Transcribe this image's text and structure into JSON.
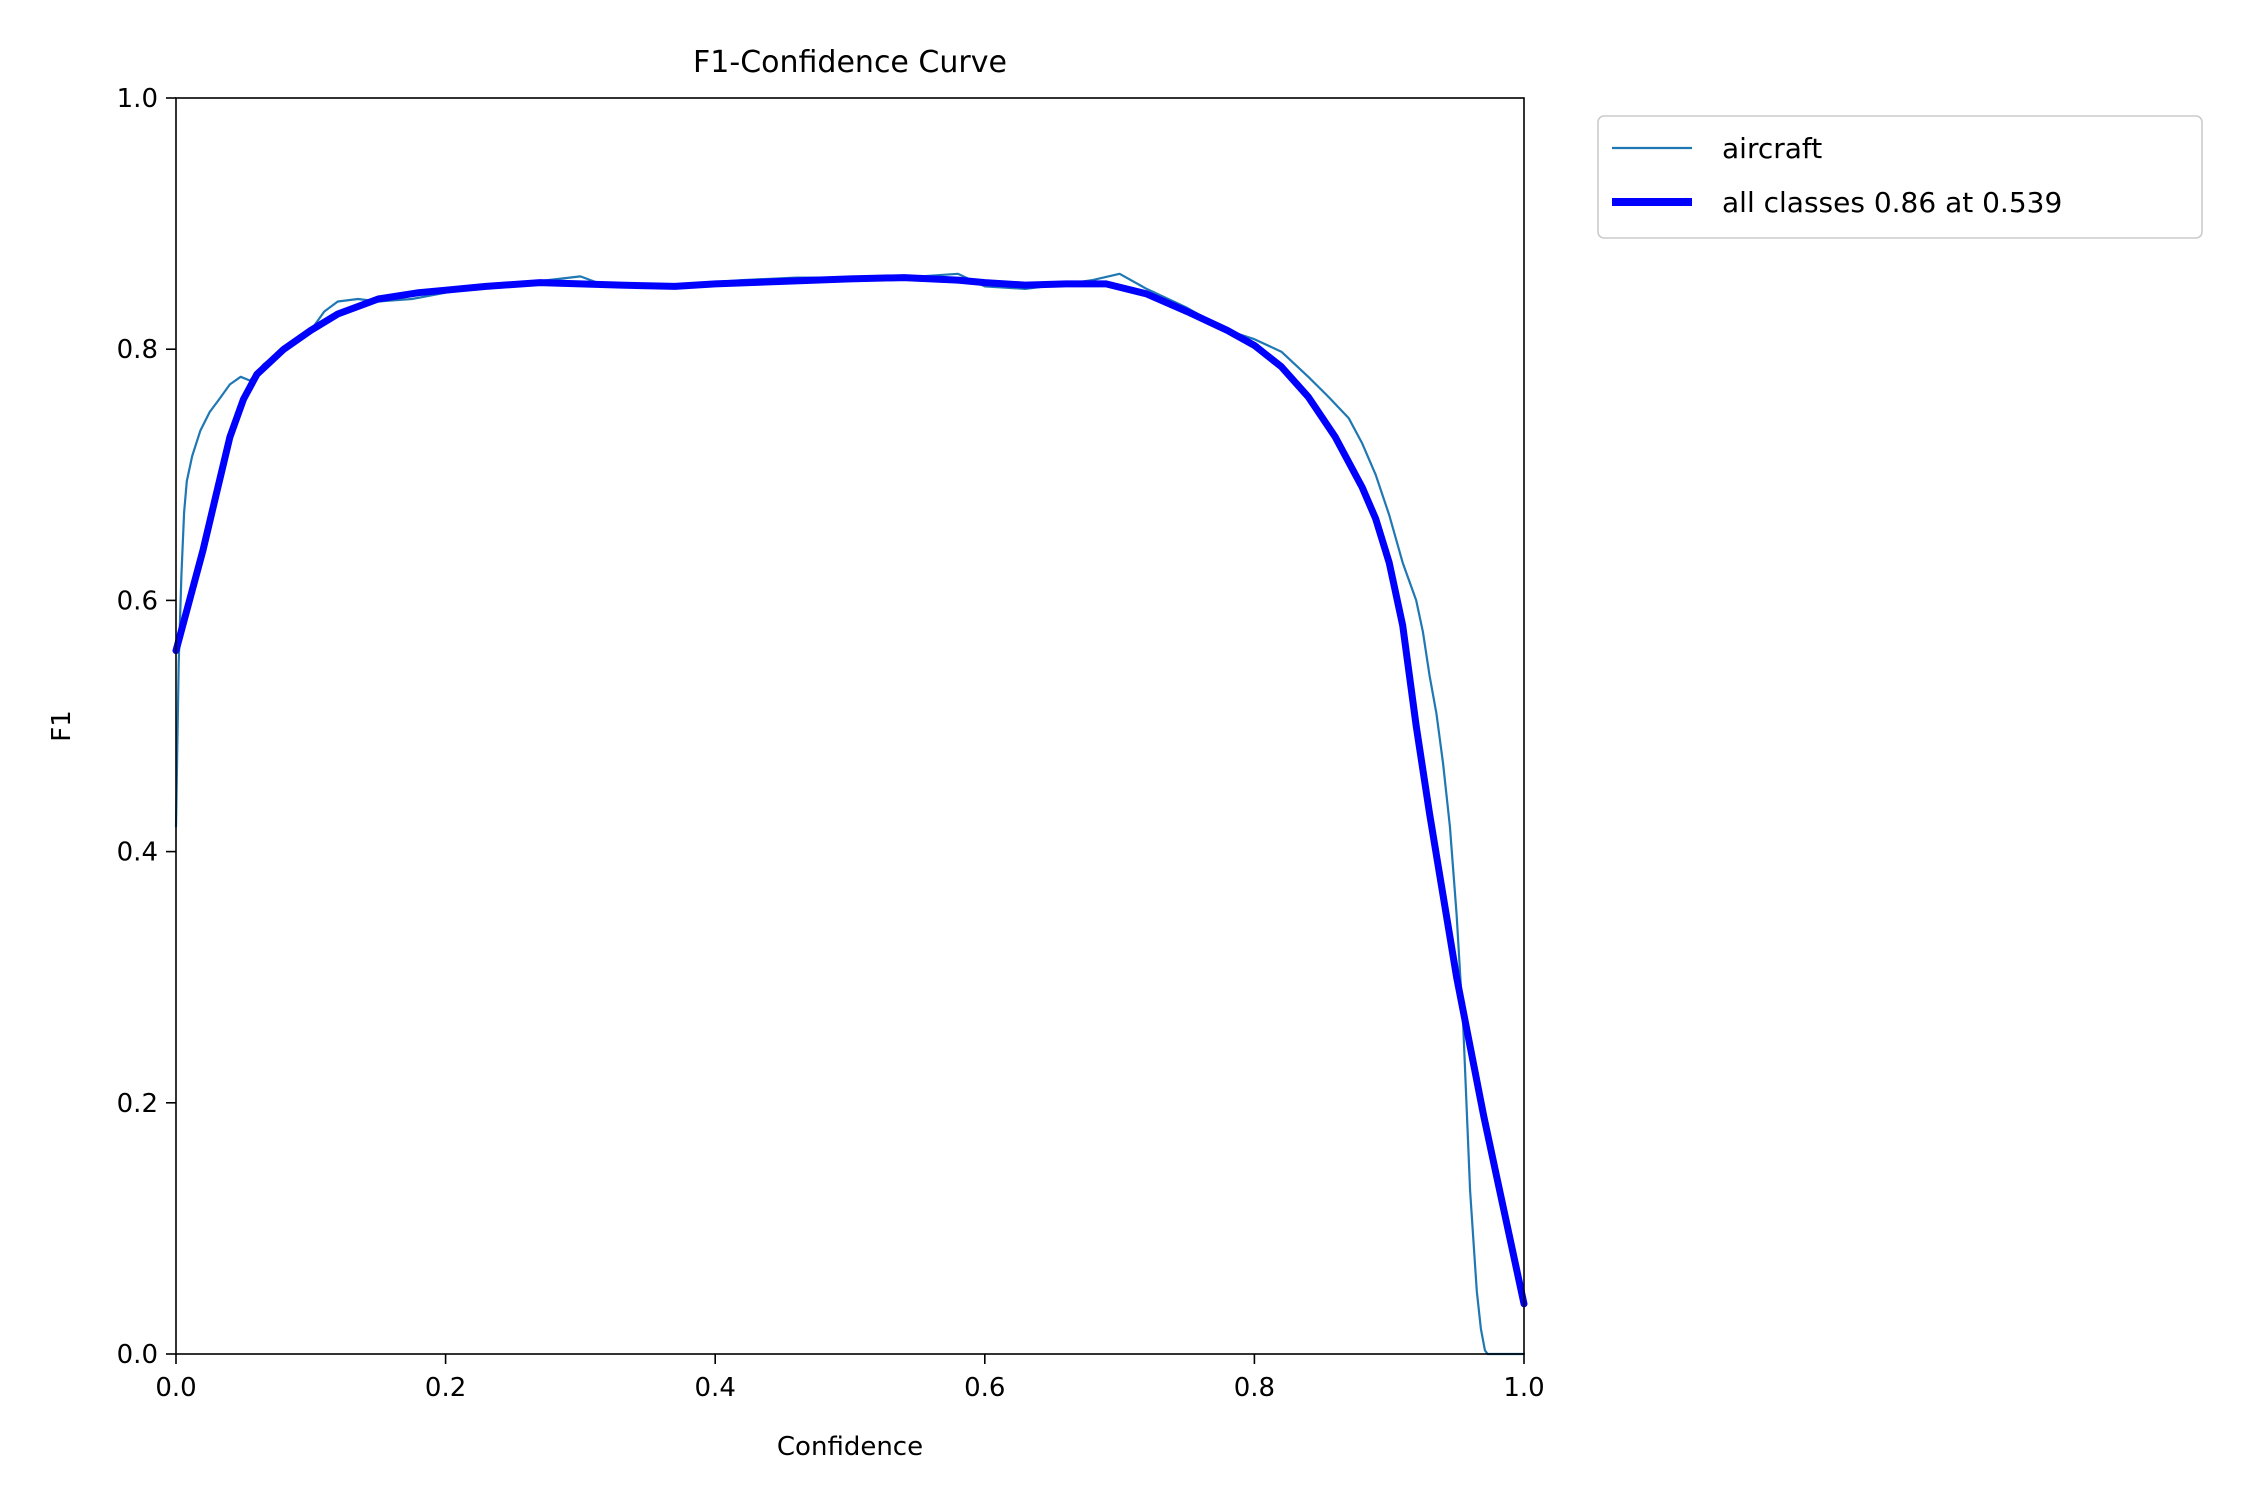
{
  "chart_data": {
    "type": "line",
    "title": "F1-Confidence Curve",
    "xlabel": "Confidence",
    "ylabel": "F1",
    "xlim": [
      0,
      1
    ],
    "ylim": [
      0,
      1
    ],
    "x_ticks": [
      "0.0",
      "0.2",
      "0.4",
      "0.6",
      "0.8",
      "1.0"
    ],
    "y_ticks": [
      "0.0",
      "0.2",
      "0.4",
      "0.6",
      "0.8",
      "1.0"
    ],
    "grid": false,
    "legend_position": "outside-upper-right",
    "series": [
      {
        "name": "aircraft",
        "color": "#1f77b4",
        "line": "thin",
        "x": [
          0.0,
          0.002,
          0.004,
          0.006,
          0.008,
          0.012,
          0.018,
          0.025,
          0.032,
          0.04,
          0.048,
          0.055,
          0.065,
          0.08,
          0.1,
          0.11,
          0.12,
          0.135,
          0.15,
          0.175,
          0.2,
          0.23,
          0.26,
          0.3,
          0.32,
          0.35,
          0.38,
          0.42,
          0.46,
          0.5,
          0.54,
          0.58,
          0.6,
          0.63,
          0.66,
          0.68,
          0.7,
          0.72,
          0.75,
          0.78,
          0.8,
          0.82,
          0.84,
          0.855,
          0.87,
          0.88,
          0.89,
          0.9,
          0.91,
          0.92,
          0.925,
          0.93,
          0.935,
          0.94,
          0.945,
          0.95,
          0.955,
          0.96,
          0.965,
          0.968,
          0.971,
          0.973,
          0.974,
          0.98,
          0.99,
          1.0
        ],
        "y": [
          0.42,
          0.55,
          0.62,
          0.67,
          0.695,
          0.715,
          0.735,
          0.75,
          0.76,
          0.772,
          0.778,
          0.775,
          0.788,
          0.8,
          0.815,
          0.83,
          0.838,
          0.84,
          0.838,
          0.84,
          0.845,
          0.85,
          0.853,
          0.858,
          0.85,
          0.849,
          0.852,
          0.855,
          0.857,
          0.857,
          0.857,
          0.86,
          0.85,
          0.848,
          0.852,
          0.855,
          0.86,
          0.848,
          0.833,
          0.815,
          0.808,
          0.798,
          0.778,
          0.762,
          0.745,
          0.725,
          0.7,
          0.668,
          0.63,
          0.6,
          0.575,
          0.54,
          0.51,
          0.47,
          0.42,
          0.35,
          0.26,
          0.13,
          0.05,
          0.02,
          0.003,
          0.0,
          0.0,
          0.0,
          0.0,
          0.0
        ]
      },
      {
        "name": "all classes 0.86 at 0.539",
        "color": "#0000ff",
        "line": "thick",
        "x": [
          0.0,
          0.01,
          0.02,
          0.03,
          0.04,
          0.05,
          0.06,
          0.08,
          0.1,
          0.12,
          0.15,
          0.18,
          0.2,
          0.23,
          0.27,
          0.3,
          0.33,
          0.37,
          0.4,
          0.45,
          0.5,
          0.54,
          0.58,
          0.6,
          0.63,
          0.66,
          0.69,
          0.72,
          0.75,
          0.78,
          0.8,
          0.82,
          0.84,
          0.86,
          0.88,
          0.89,
          0.9,
          0.91,
          0.92,
          0.93,
          0.94,
          0.95,
          0.96,
          0.97,
          0.98,
          0.99,
          1.0
        ],
        "y": [
          0.56,
          0.6,
          0.64,
          0.685,
          0.73,
          0.76,
          0.78,
          0.8,
          0.815,
          0.828,
          0.84,
          0.845,
          0.847,
          0.85,
          0.853,
          0.852,
          0.851,
          0.85,
          0.852,
          0.854,
          0.856,
          0.857,
          0.855,
          0.853,
          0.851,
          0.852,
          0.852,
          0.844,
          0.83,
          0.815,
          0.803,
          0.786,
          0.762,
          0.73,
          0.69,
          0.665,
          0.63,
          0.58,
          0.5,
          0.43,
          0.365,
          0.3,
          0.245,
          0.19,
          0.14,
          0.09,
          0.04
        ]
      }
    ]
  }
}
